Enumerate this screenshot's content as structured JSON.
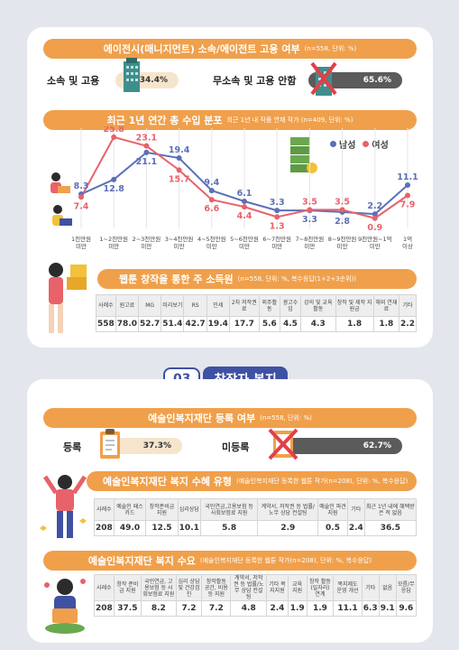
{
  "section1": {
    "agency_banner": {
      "title": "에이전시(매니지먼트) 소속/에이전트 고용 여부",
      "sub": "(n=558, 단위: %)"
    },
    "agency_yes": {
      "label": "소속 및 고용",
      "value": "34.4%"
    },
    "agency_no": {
      "label": "무소속 및 고용 안함",
      "value": "65.6%"
    },
    "income_banner": {
      "title": "최근 1년 연간 총 수입 분포",
      "sub": "최근 1년 내 작품 연재 작가 (n=409, 단위: %)"
    },
    "channel_banner": {
      "title": "웹툰 창작을 통한 주 소득원",
      "sub": "(n=558, 단위: %, 복수응답(1+2+3순위))"
    }
  },
  "section_tag": {
    "num": "03",
    "title": "창작자 복지"
  },
  "section2": {
    "reg_banner": {
      "title": "예술인복지재단 등록 여부",
      "sub": "(n=558, 단위: %)"
    },
    "reg_yes": {
      "label": "등록",
      "value": "37.3%"
    },
    "reg_no": {
      "label": "미등록",
      "value": "62.7%"
    },
    "benefit_banner": {
      "title": "예술인복지재단 복지 수혜 유형",
      "sub": "(예술인복지재단 등록한 웹툰 작가(n=208), 단위: %, 복수응답)"
    },
    "demand_banner": {
      "title": "예술인복지재단 복지 수요",
      "sub": "(예술인복지재단 등록한 웹툰 작가(n=208), 단위: %, 복수응답)"
    }
  },
  "colors": {
    "male": "#5b6fb8",
    "female": "#e8626a",
    "orange": "#f0a04b",
    "dark": "#5b5b5b"
  },
  "chart_data": [
    {
      "type": "line",
      "title": "최근 1년 연간 총 수입 분포",
      "categories": [
        "1천만원 미만",
        "1~2천만원 미만",
        "2~3천만원 미만",
        "3~4천만원 미만",
        "4~5천만원 미만",
        "5~6천만원 미만",
        "6~7천만원 미만",
        "7~8천만원 미만",
        "8~9천만원 미만",
        "9천만원~1억 미만",
        "1억 이상"
      ],
      "series": [
        {
          "name": "남성",
          "values": [
            8.3,
            12.8,
            21.1,
            19.4,
            9.4,
            6.1,
            3.3,
            3.3,
            2.8,
            2.2,
            11.1
          ]
        },
        {
          "name": "여성",
          "values": [
            7.4,
            25.8,
            23.1,
            15.7,
            6.6,
            4.4,
            1.3,
            3.5,
            3.5,
            0.9,
            7.9
          ]
        }
      ],
      "ylim": [
        0,
        28
      ],
      "legend": "top-right"
    },
    {
      "type": "table",
      "title": "웹툰 창작을 통한 주 소득원",
      "headers": [
        "사례수",
        "원고료",
        "MG",
        "미리보기",
        "RS",
        "인세",
        "2차 저작권료",
        "외주활동",
        "광고수입",
        "강의 및 교육 활동",
        "창작 및 제작 지원금",
        "해외 연재료",
        "기타"
      ],
      "values": [
        "558",
        "78.0",
        "52.7",
        "51.4",
        "42.7",
        "19.4",
        "17.7",
        "5.6",
        "4.5",
        "4.3",
        "1.8",
        "1.8",
        "2.2"
      ]
    },
    {
      "type": "table",
      "title": "예술인복지재단 복지 수혜 유형",
      "headers": [
        "사례수",
        "예술인 패스카드",
        "창작준비금 지원",
        "심리상담",
        "국민연금,고용보험 등 사회보험료 지원",
        "계약서, 저작권 등 법률/노무 상담 컨설팅",
        "예술인 파견지원",
        "기타",
        "최근 1년 내에 혜택받은 적 없음"
      ],
      "values": [
        "208",
        "49.0",
        "12.5",
        "10.1",
        "5.8",
        "2.9",
        "0.5",
        "2.4",
        "36.5"
      ]
    },
    {
      "type": "table",
      "title": "예술인복지재단 복지 수요",
      "headers": [
        "사례수",
        "창작 준비금 지원",
        "국민연금, 고용보험 등 사회보험료 지원",
        "심리 상담 및 건강검진",
        "창작활동 공간, 비용 등 지원",
        "계약서, 저작권 등 법률/노무 상담 컨설팅",
        "기타 복지지원",
        "교육 지원",
        "창작 활동 (일자리) 연계",
        "복지제도 운영 개선",
        "기타",
        "없음",
        "모름/무응답"
      ],
      "values": [
        "208",
        "37.5",
        "8.2",
        "7.2",
        "7.2",
        "4.8",
        "2.4",
        "1.9",
        "1.9",
        "11.1",
        "6.3",
        "9.1",
        "9.6"
      ]
    }
  ]
}
